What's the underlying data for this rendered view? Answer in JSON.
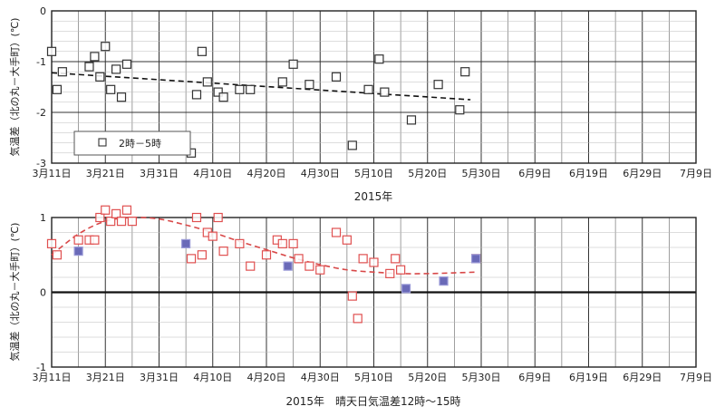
{
  "chart_data": [
    {
      "type": "scatter",
      "title": "",
      "xlabel": "2015年",
      "ylabel": "気温差（北の丸－大手町）(℃)",
      "ylim": [
        -3,
        0
      ],
      "yticks": [
        "0",
        "-1",
        "-2",
        "-3"
      ],
      "x_tick_labels": [
        "3月11日",
        "3月21日",
        "3月31日",
        "4月10日",
        "4月20日",
        "4月30日",
        "5月10日",
        "5月20日",
        "5月30日",
        "6月9日",
        "6月19日",
        "6月29日",
        "7月9日"
      ],
      "xlim_days": [
        0,
        120
      ],
      "grid": true,
      "legend": {
        "position": "bottom-left",
        "entries": [
          "2時－5時"
        ]
      },
      "series": [
        {
          "name": "2時－5時",
          "style": "square-open",
          "color": "#333333",
          "x": [
            0,
            1,
            2,
            7,
            8,
            9,
            10,
            11,
            12,
            13,
            14,
            26,
            27,
            28,
            29,
            31,
            32,
            35,
            37,
            43,
            45,
            48,
            53,
            56,
            59,
            61,
            62,
            67,
            72,
            76,
            77
          ],
          "y": [
            -0.8,
            -1.55,
            -1.2,
            -1.1,
            -0.9,
            -1.3,
            -0.7,
            -1.55,
            -1.15,
            -1.7,
            -1.05,
            -2.8,
            -1.65,
            -0.8,
            -1.4,
            -1.6,
            -1.7,
            -1.55,
            -1.55,
            -1.4,
            -1.05,
            -1.45,
            -1.3,
            -2.65,
            -1.55,
            -0.95,
            -1.6,
            -2.15,
            -1.45,
            -1.95,
            -1.2
          ]
        }
      ],
      "trend": {
        "type": "linear",
        "style": "dashed",
        "color": "#111111",
        "x": [
          0,
          78
        ],
        "y": [
          -1.22,
          -1.75
        ]
      }
    },
    {
      "type": "scatter",
      "title": "",
      "xlabel": "2015年　晴天日気温差12時～15時",
      "ylabel": "気温差（北の丸－大手町）(℃)",
      "ylim": [
        -1,
        1
      ],
      "yticks": [
        "1",
        "0",
        "-1"
      ],
      "x_tick_labels": [
        "3月11日",
        "3月21日",
        "3月31日",
        "4月10日",
        "4月20日",
        "4月30日",
        "5月10日",
        "5月20日",
        "5月30日",
        "6月9日",
        "6月19日",
        "6月29日",
        "7月9日"
      ],
      "xlim_days": [
        0,
        120
      ],
      "grid": true,
      "series": [
        {
          "style": "square-open",
          "color": "#e05050",
          "x": [
            0,
            1,
            5,
            7,
            8,
            9,
            10,
            11,
            12,
            13,
            14,
            15,
            26,
            27,
            28,
            29,
            30,
            31,
            32,
            35,
            37,
            40,
            42,
            43,
            45,
            46,
            48,
            50,
            53,
            55,
            56,
            57,
            58,
            60,
            63,
            64,
            65,
            79
          ],
          "y": [
            0.65,
            0.5,
            0.7,
            0.7,
            0.7,
            1.0,
            1.1,
            0.95,
            1.05,
            0.95,
            1.1,
            0.95,
            0.45,
            1.0,
            0.5,
            0.8,
            0.75,
            1.0,
            0.55,
            0.65,
            0.35,
            0.5,
            0.7,
            0.65,
            0.65,
            0.45,
            0.35,
            0.3,
            0.8,
            0.7,
            -0.05,
            -0.35,
            0.45,
            0.4,
            0.25,
            0.45,
            0.3,
            0.45
          ]
        },
        {
          "style": "square-filled",
          "color": "#6a6ab8",
          "x": [
            5,
            25,
            44,
            66,
            73,
            79
          ],
          "y": [
            0.55,
            0.65,
            0.35,
            0.05,
            0.15,
            0.45
          ]
        }
      ],
      "trend": {
        "type": "polynomial",
        "style": "dashed",
        "color": "#d84848",
        "x": [
          0,
          5,
          10,
          15,
          20,
          25,
          30,
          35,
          40,
          45,
          50,
          55,
          60,
          65,
          70,
          75,
          79
        ],
        "y": [
          0.5,
          0.78,
          0.95,
          1.0,
          0.98,
          0.9,
          0.8,
          0.68,
          0.57,
          0.46,
          0.37,
          0.3,
          0.27,
          0.25,
          0.25,
          0.26,
          0.27
        ]
      }
    }
  ]
}
